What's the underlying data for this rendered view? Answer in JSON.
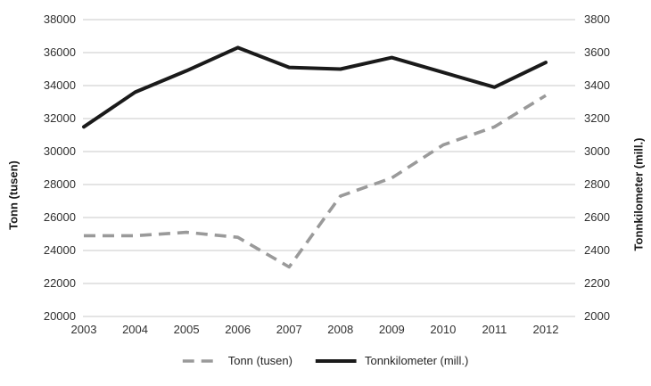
{
  "chart_data": {
    "type": "line",
    "title": "",
    "x": [
      "2003",
      "2004",
      "2005",
      "2006",
      "2007",
      "2008",
      "2009",
      "2010",
      "2011",
      "2012"
    ],
    "series": [
      {
        "name": "Tonn (tusen)",
        "axis": "left",
        "style": "dashed",
        "color": "#9a9a9a",
        "values": [
          24900,
          24900,
          25100,
          24800,
          23000,
          27300,
          28400,
          30400,
          31500,
          33400
        ]
      },
      {
        "name": "Tonnkilometer (mill.)",
        "axis": "right",
        "style": "solid",
        "color": "#1a1a1a",
        "values": [
          3150,
          3360,
          3490,
          3630,
          3510,
          3500,
          3570,
          3480,
          3390,
          3540
        ]
      }
    ],
    "left_axis": {
      "title": "Tonn (tusen)",
      "min": 20000,
      "max": 38000,
      "step": 2000,
      "ticks": [
        "20000",
        "22000",
        "24000",
        "26000",
        "28000",
        "30000",
        "32000",
        "34000",
        "36000",
        "38000"
      ]
    },
    "right_axis": {
      "title": "Tonnkilometer (mill.)",
      "min": 2000,
      "max": 3800,
      "step": 200,
      "ticks": [
        "2000",
        "2200",
        "2400",
        "2600",
        "2800",
        "3000",
        "3200",
        "3400",
        "3600",
        "3800"
      ]
    },
    "grid": true,
    "gridline_color": "#c8c8c8",
    "background_color": "#ffffff",
    "legend_position": "bottom-center"
  }
}
